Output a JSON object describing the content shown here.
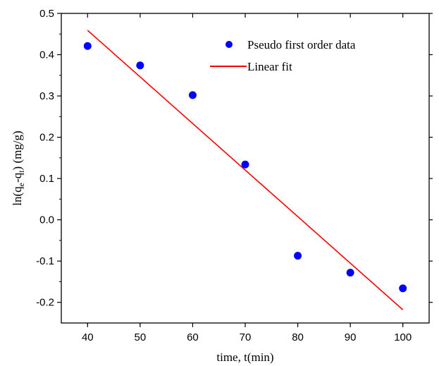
{
  "chart_data": {
    "type": "scatter",
    "title": "",
    "xlabel": "time, t(min)",
    "ylabel": {
      "prefix": "ln(q",
      "sub1": "e",
      "mid": "-q",
      "sub2": "t",
      "suffix": ") (mg/g)"
    },
    "xlim": [
      35,
      105
    ],
    "ylim": [
      -0.25,
      0.5
    ],
    "xticks": [
      40,
      50,
      60,
      70,
      80,
      90,
      100
    ],
    "yticks": [
      0.5,
      0.4,
      0.3,
      0.2,
      0.1,
      0.0,
      -0.1,
      -0.2
    ],
    "ytick_labels": [
      "0.5",
      "0.4",
      "0.3",
      "0.2",
      "0.1",
      "0.0",
      "-0.1",
      "-0.2"
    ],
    "series": [
      {
        "name": "Pseudo first order data",
        "kind": "scatter",
        "color": "#0000ff",
        "x": [
          40,
          50,
          60,
          70,
          80,
          90,
          100
        ],
        "y": [
          0.421,
          0.374,
          0.302,
          0.134,
          -0.087,
          -0.128,
          -0.166
        ]
      },
      {
        "name": "Linear fit",
        "kind": "line",
        "color": "#ff0000",
        "x": [
          40,
          100
        ],
        "y": [
          0.459,
          -0.218
        ]
      }
    ],
    "legend": {
      "position": "top-right"
    }
  }
}
